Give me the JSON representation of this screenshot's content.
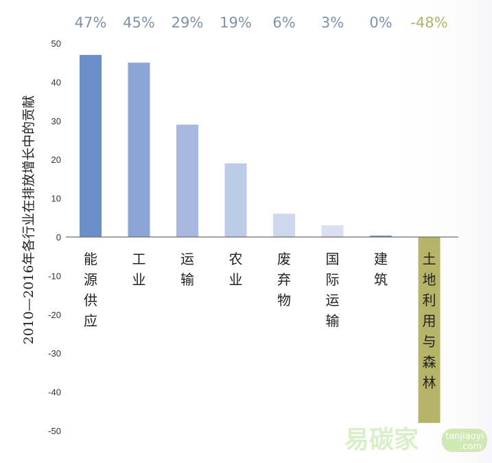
{
  "chart_data": {
    "type": "bar",
    "categories": [
      "能源供应",
      "工业",
      "运输",
      "农业",
      "废弃物",
      "国际运输",
      "建筑",
      "土地利用与森林"
    ],
    "values": [
      47,
      45,
      29,
      19,
      6,
      3,
      0,
      -48
    ],
    "percent_labels": [
      "47%",
      "45%",
      "29%",
      "19%",
      "6%",
      "3%",
      "0%",
      "-48%"
    ],
    "ylabel": "2010—2016年各行业在排放增长中的贡献",
    "ylim": [
      -50,
      50
    ],
    "yticks": [
      50,
      40,
      30,
      20,
      10,
      0,
      -10,
      -20,
      -30,
      -40,
      -50
    ],
    "grid": false,
    "bar_colors": [
      "#6b8fc9",
      "#8ba6d6",
      "#a7b8de",
      "#bccbe8",
      "#cdd8ef",
      "#d8e0f2",
      "#6b8fc9",
      "#b5b468"
    ],
    "label_colors": [
      "#7d92ad",
      "#7d92ad",
      "#7d92ad",
      "#7d92ad",
      "#7d92ad",
      "#7d92ad",
      "#7d92ad",
      "#b3b36a"
    ]
  },
  "watermark": {
    "text": "易碳家",
    "url_line1": "tanjiaoyi",
    "url_line2": ".com"
  }
}
